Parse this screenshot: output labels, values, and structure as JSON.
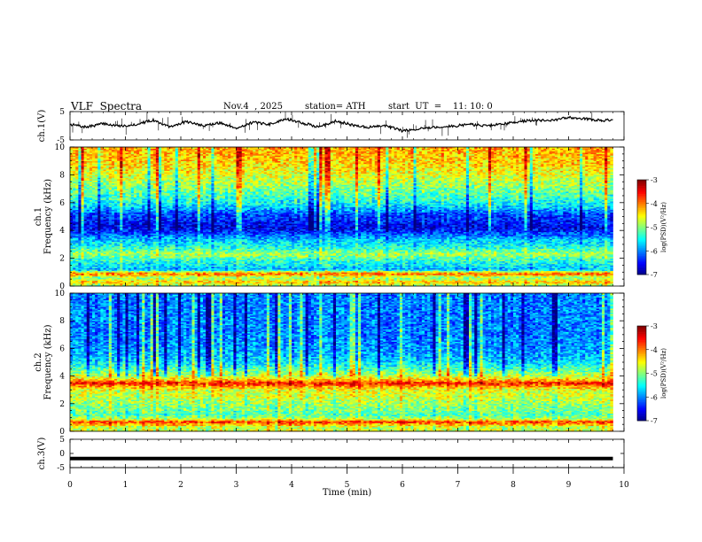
{
  "header": {
    "title": "VLF  Spectra",
    "date": "Nov.4  , 2025",
    "station": "station= ATH",
    "start_ut": "start  UT  =    11: 10: 0"
  },
  "chart_data": [
    {
      "type": "line",
      "name": "ch1-waveform",
      "ylabel": "ch.1(V)",
      "ylim": [
        -5,
        5
      ],
      "yticks": [
        "5",
        "-5"
      ],
      "xlim": [
        0,
        10
      ],
      "x": [
        0,
        0.3,
        0.6,
        0.9,
        1.2,
        1.5,
        1.8,
        2.1,
        2.4,
        2.7,
        3.0,
        3.3,
        3.6,
        3.9,
        4.2,
        4.5,
        4.8,
        5.1,
        5.4,
        5.7,
        6.0,
        6.3,
        6.6,
        6.9,
        7.2,
        7.5,
        7.8,
        8.1,
        8.4,
        8.7,
        9.0,
        9.3,
        9.6,
        9.8
      ],
      "values": [
        0.5,
        -0.5,
        0.8,
        -0.2,
        0.5,
        2.0,
        -0.5,
        1.5,
        0.0,
        1.0,
        -0.8,
        1.2,
        0.5,
        2.5,
        1.0,
        -0.5,
        1.8,
        0.2,
        -0.5,
        0.0,
        -1.8,
        -1.0,
        -0.5,
        -0.2,
        0.5,
        0.0,
        0.5,
        1.5,
        2.0,
        1.8,
        3.0,
        2.5,
        1.8,
        2.2
      ]
    },
    {
      "type": "heatmap",
      "name": "ch1-spectrogram",
      "ylabel": "ch.1\nFrequency (kHz)",
      "ylim": [
        0,
        10
      ],
      "yticks": [
        "0",
        "2",
        "4",
        "6",
        "8",
        "10"
      ],
      "xlim": [
        0,
        10
      ],
      "data_xmax": 9.8,
      "colorbar": {
        "label": "log(PSD)(V²/Hz)",
        "range": [
          -7,
          -3
        ],
        "ticks": [
          "-3",
          "-4",
          "-5",
          "-6",
          "-7"
        ]
      },
      "frequency_profile_kHz": [
        0,
        0.3,
        0.6,
        0.9,
        1.2,
        1.6,
        2.0,
        2.3,
        2.8,
        3.3,
        3.8,
        4.2,
        4.7,
        5.2,
        5.8,
        6.3,
        6.8,
        7.5,
        8.3,
        9.0,
        10.0
      ],
      "frequency_profile_log_psd": [
        -5.0,
        -4.2,
        -5.0,
        -3.8,
        -5.8,
        -5.5,
        -5.2,
        -4.8,
        -5.4,
        -5.7,
        -6.2,
        -6.6,
        -6.4,
        -6.2,
        -5.6,
        -5.3,
        -5.1,
        -4.8,
        -4.5,
        -4.3,
        -4.2
      ]
    },
    {
      "type": "heatmap",
      "name": "ch2-spectrogram",
      "ylabel": "ch.2\nFrequency (kHz)",
      "ylim": [
        0,
        10
      ],
      "yticks": [
        "0",
        "2",
        "4",
        "6",
        "8",
        "10"
      ],
      "xlim": [
        0,
        10
      ],
      "data_xmax": 9.8,
      "colorbar": {
        "label": "log(PSD)(V²/Hz)",
        "range": [
          -7,
          -3
        ],
        "ticks": [
          "-3",
          "-4",
          "-5",
          "-6",
          "-7"
        ]
      },
      "frequency_profile_kHz": [
        0,
        0.3,
        0.7,
        0.9,
        1.2,
        1.6,
        2.0,
        2.5,
        3.0,
        3.3,
        3.5,
        3.7,
        4.0,
        4.5,
        5.0,
        5.5,
        6.0,
        7.0,
        8.0,
        9.0,
        10.0
      ],
      "frequency_profile_log_psd": [
        -4.6,
        -4.8,
        -3.6,
        -4.8,
        -5.2,
        -5.0,
        -4.9,
        -4.7,
        -4.6,
        -4.0,
        -3.5,
        -4.2,
        -4.7,
        -5.2,
        -5.6,
        -5.8,
        -5.9,
        -6.0,
        -6.0,
        -6.0,
        -6.0
      ]
    },
    {
      "type": "line",
      "name": "ch3-waveform",
      "ylabel": "ch.3(V)",
      "ylim": [
        -5,
        5
      ],
      "yticks": [
        "5",
        "0",
        "-5"
      ],
      "xlim": [
        0,
        10
      ],
      "x": [
        0,
        9.8
      ],
      "values": [
        -1.8,
        -1.8
      ],
      "xlabel": "Time  (min)",
      "xticks": [
        "0",
        "1",
        "2",
        "3",
        "4",
        "5",
        "6",
        "7",
        "8",
        "9",
        "10"
      ]
    }
  ]
}
